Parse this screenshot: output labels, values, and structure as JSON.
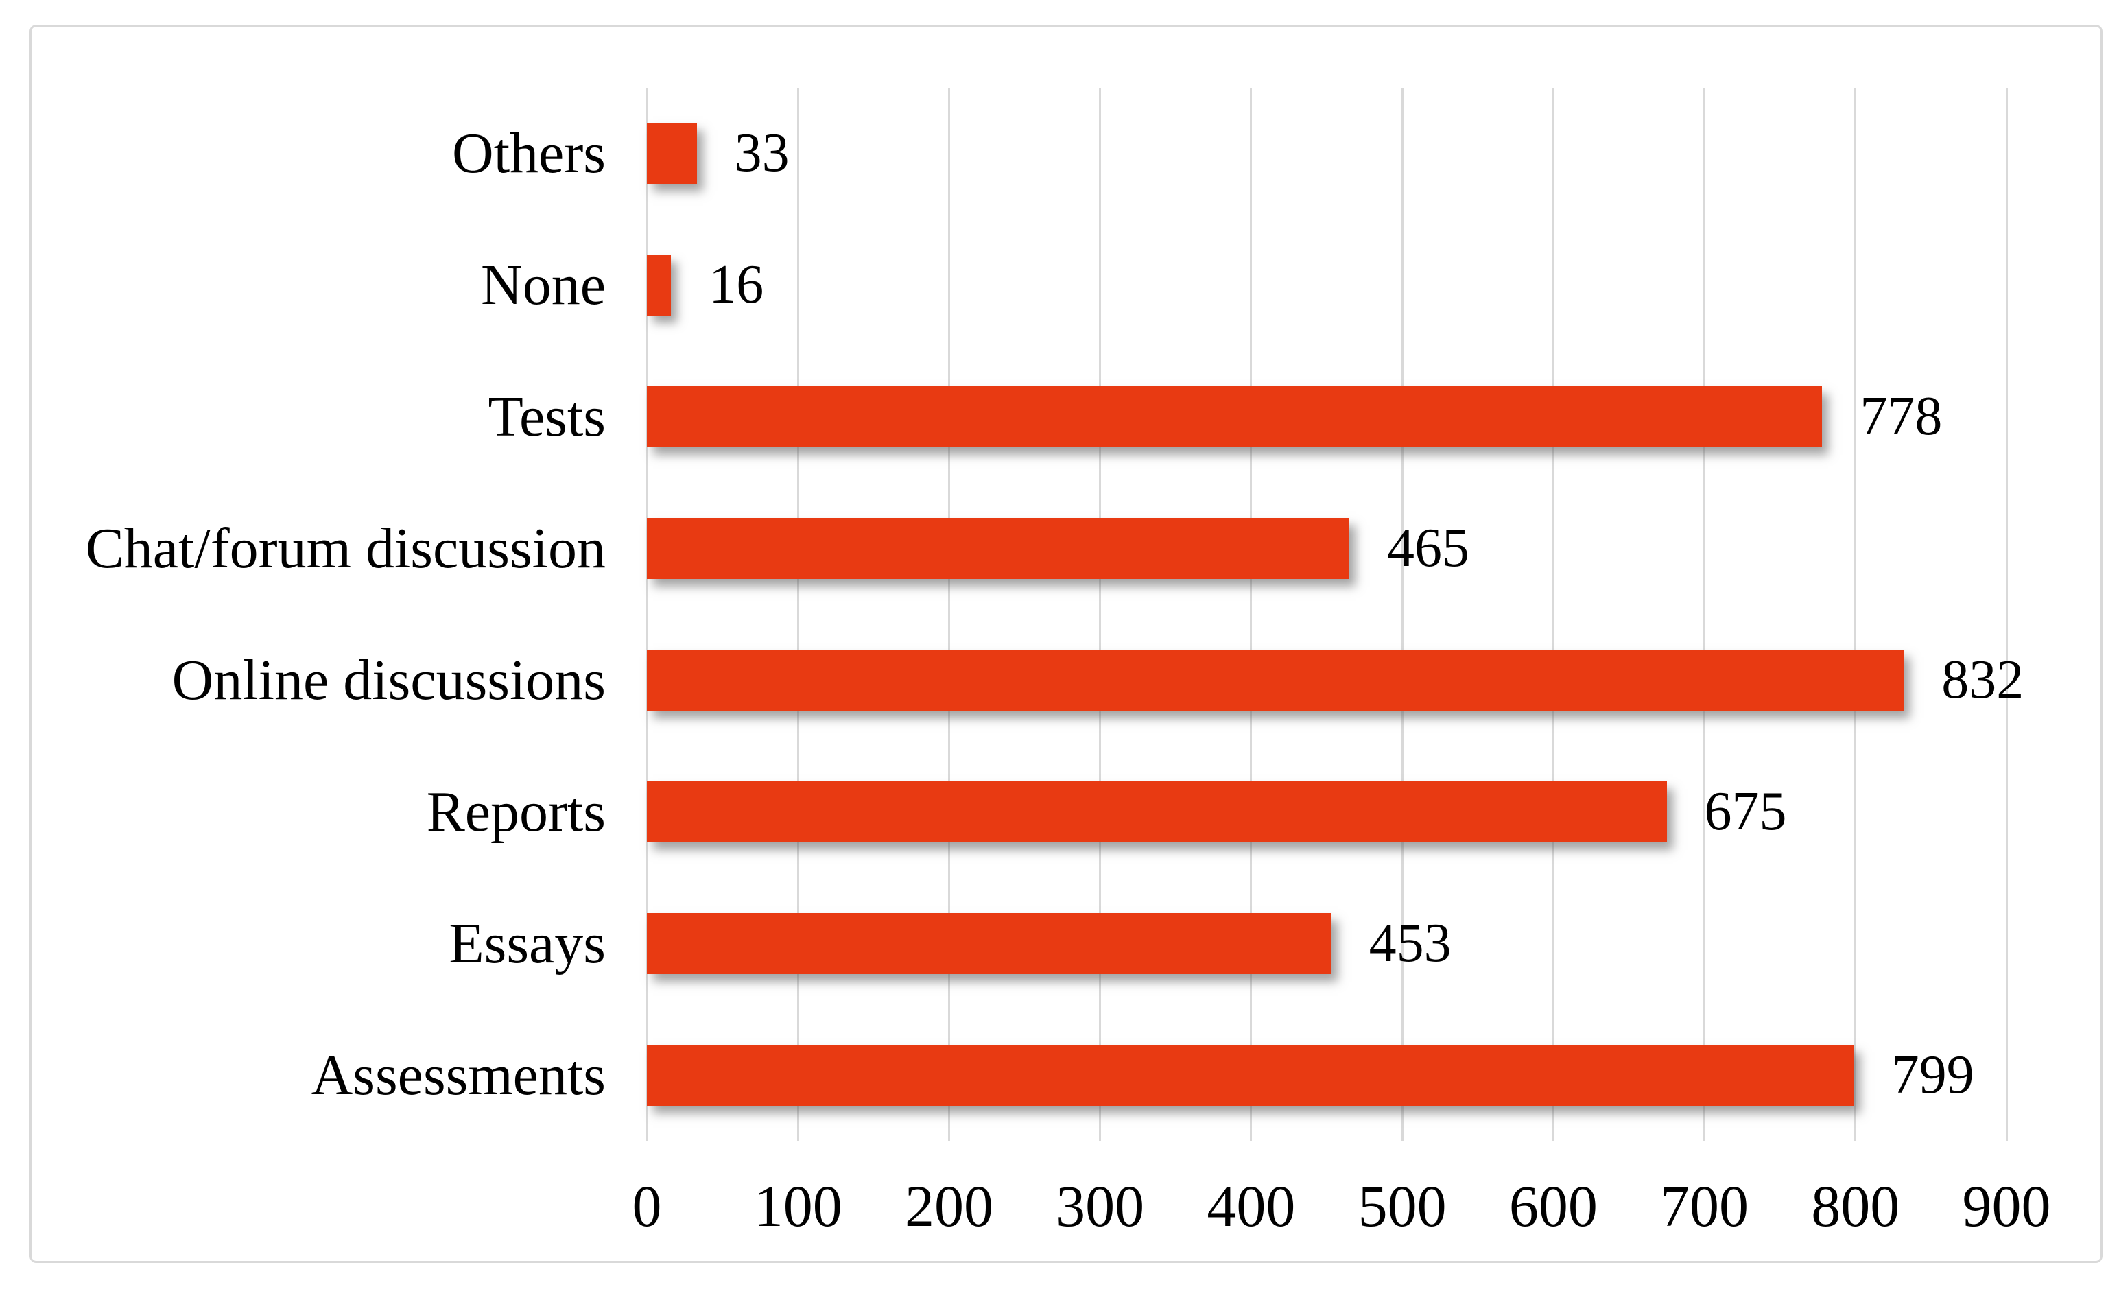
{
  "figure": {
    "background": "#ffffff",
    "border_color": "#d9d9d9"
  },
  "chart_data": {
    "type": "bar",
    "orientation": "horizontal",
    "title": "",
    "xlabel": "",
    "ylabel": "",
    "categories": [
      "Others",
      "None",
      "Tests",
      "Chat/forum discussion",
      "Online discussions",
      "Reports",
      "Essays",
      "Assessments"
    ],
    "values": [
      33,
      16,
      778,
      465,
      832,
      675,
      453,
      799
    ],
    "xlim": [
      0,
      900
    ],
    "x_ticks": [
      "0",
      "100",
      "200",
      "300",
      "400",
      "500",
      "600",
      "700",
      "800",
      "900"
    ],
    "grid": "vertical",
    "legend": "none",
    "bar_color": "#e83a12",
    "gridline_color": "#d9d9d9",
    "text_color": "#000000"
  }
}
